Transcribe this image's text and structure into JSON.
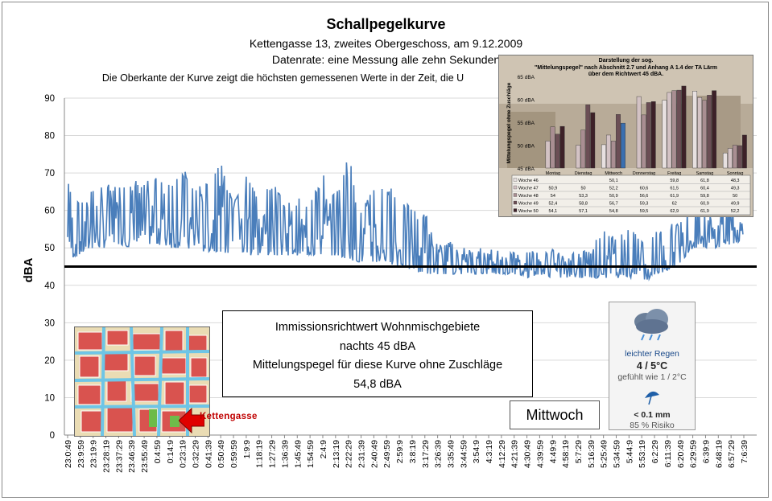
{
  "title": "Schallpegelkurve",
  "subtitle1": "Kettengasse 13, zweites Obergeschoss, am 9.12.2009",
  "subtitle2": "Datenrate: eine Messung alle zehn Sekunden",
  "note": "Die Oberkante der Kurve zeigt die höchsten gemessenen Werte  in der Zeit, die U",
  "info": {
    "line1": "Immissionsrichtwert Wohnmischgebiete",
    "line2": "nachts 45 dBA",
    "line3": "Mittelungspegel für diese Kurve ohne Zuschläge",
    "line4": "54,8 dBA"
  },
  "day": "Mittwoch",
  "weather": {
    "condition": "leichter Regen",
    "temp": "4 / 5°C",
    "feels": "gefühlt wie 1 / 2°C",
    "rain": "< 0.1 mm",
    "risk": "85 % Risiko",
    "icon": "rain-cloud-icon",
    "umbrella": "umbrella-icon"
  },
  "map": {
    "label": "Kettengasse",
    "arrow_color": "#e00000"
  },
  "colors": {
    "series": "#4a7ebb",
    "threshold": "#000000",
    "grid": "#d9d9d9"
  },
  "chart_data": {
    "type": "line",
    "ylabel": "dBA",
    "ylim": [
      0,
      90
    ],
    "yticks": [
      0,
      10,
      20,
      30,
      40,
      50,
      60,
      70,
      80,
      90
    ],
    "grid": true,
    "threshold": 45,
    "xticks": [
      "23:0:49",
      "23:9:59",
      "23:19:9",
      "23:28:19",
      "23:37:29",
      "23:46:39",
      "23:55:49",
      "0:4:59",
      "0:14:9",
      "0:23:19",
      "0:32:29",
      "0:41:39",
      "0:50:49",
      "0:59:59",
      "1:9:9",
      "1:18:19",
      "1:27:29",
      "1:36:39",
      "1:45:49",
      "1:54:59",
      "2:4:9",
      "2:13:19",
      "2:22:29",
      "2:31:39",
      "2:40:49",
      "2:49:59",
      "2:59:9",
      "3:8:19",
      "3:17:29",
      "3:26:39",
      "3:35:49",
      "3:44:59",
      "3:54:9",
      "4:3:19",
      "4:12:29",
      "4:21:39",
      "4:30:49",
      "4:39:59",
      "4:49:9",
      "4:58:19",
      "5:7:29",
      "5:16:39",
      "5:25:49",
      "5:34:59",
      "5:44:9",
      "5:53:19",
      "6:2:29",
      "6:11:39",
      "6:20:49",
      "6:29:59",
      "6:39:9",
      "6:48:19",
      "6:57:29",
      "7:6:39"
    ],
    "series": [
      {
        "envelope": [
          {
            "x": "23:0:49",
            "min": 47,
            "max": 68
          },
          {
            "x": "23:9:59",
            "min": 48,
            "max": 62
          },
          {
            "x": "23:19:9",
            "min": 50,
            "max": 66
          },
          {
            "x": "23:28:19",
            "min": 50,
            "max": 68
          },
          {
            "x": "23:37:29",
            "min": 51,
            "max": 66
          },
          {
            "x": "23:46:39",
            "min": 50,
            "max": 68
          },
          {
            "x": "23:55:49",
            "min": 51,
            "max": 68
          },
          {
            "x": "0:4:59",
            "min": 51,
            "max": 69
          },
          {
            "x": "0:14:9",
            "min": 50,
            "max": 67
          },
          {
            "x": "0:23:19",
            "min": 50,
            "max": 72
          },
          {
            "x": "0:32:29",
            "min": 49,
            "max": 66
          },
          {
            "x": "0:41:39",
            "min": 49,
            "max": 68
          },
          {
            "x": "0:50:49",
            "min": 49,
            "max": 73
          },
          {
            "x": "0:59:59",
            "min": 48,
            "max": 62
          },
          {
            "x": "1:9:9",
            "min": 48,
            "max": 70
          },
          {
            "x": "1:18:19",
            "min": 48,
            "max": 64
          },
          {
            "x": "1:27:29",
            "min": 48,
            "max": 68
          },
          {
            "x": "1:36:39",
            "min": 48,
            "max": 62
          },
          {
            "x": "1:45:49",
            "min": 48,
            "max": 64
          },
          {
            "x": "1:54:59",
            "min": 48,
            "max": 62
          },
          {
            "x": "2:4:9",
            "min": 48,
            "max": 70
          },
          {
            "x": "2:13:19",
            "min": 48,
            "max": 64
          },
          {
            "x": "2:22:29",
            "min": 47,
            "max": 75
          },
          {
            "x": "2:31:39",
            "min": 46,
            "max": 62
          },
          {
            "x": "2:40:49",
            "min": 46,
            "max": 66
          },
          {
            "x": "2:49:59",
            "min": 46,
            "max": 68
          },
          {
            "x": "2:59:9",
            "min": 45,
            "max": 62
          },
          {
            "x": "3:8:19",
            "min": 44,
            "max": 62
          },
          {
            "x": "3:17:29",
            "min": 43,
            "max": 60
          },
          {
            "x": "3:26:39",
            "min": 43,
            "max": 52
          },
          {
            "x": "3:35:49",
            "min": 43,
            "max": 52
          },
          {
            "x": "3:44:59",
            "min": 43,
            "max": 50
          },
          {
            "x": "3:54:9",
            "min": 43,
            "max": 50
          },
          {
            "x": "4:3:19",
            "min": 43,
            "max": 50
          },
          {
            "x": "4:12:29",
            "min": 43,
            "max": 50
          },
          {
            "x": "4:21:39",
            "min": 43,
            "max": 49
          },
          {
            "x": "4:30:49",
            "min": 42,
            "max": 49
          },
          {
            "x": "4:39:59",
            "min": 43,
            "max": 50
          },
          {
            "x": "4:49:9",
            "min": 42,
            "max": 50
          },
          {
            "x": "4:58:19",
            "min": 42,
            "max": 48
          },
          {
            "x": "5:7:29",
            "min": 42,
            "max": 49
          },
          {
            "x": "5:16:39",
            "min": 42,
            "max": 50
          },
          {
            "x": "5:25:49",
            "min": 42,
            "max": 56
          },
          {
            "x": "5:34:59",
            "min": 42,
            "max": 52
          },
          {
            "x": "5:44:9",
            "min": 42,
            "max": 56
          },
          {
            "x": "5:53:19",
            "min": 41,
            "max": 52
          },
          {
            "x": "6:2:29",
            "min": 42,
            "max": 55
          },
          {
            "x": "6:11:39",
            "min": 44,
            "max": 56
          },
          {
            "x": "6:20:49",
            "min": 46,
            "max": 58
          },
          {
            "x": "6:29:59",
            "min": 50,
            "max": 62
          },
          {
            "x": "6:39:9",
            "min": 50,
            "max": 60
          },
          {
            "x": "6:48:19",
            "min": 50,
            "max": 60
          },
          {
            "x": "6:57:29",
            "min": 51,
            "max": 62
          },
          {
            "x": "7:6:39",
            "min": 52,
            "max": 60
          }
        ]
      }
    ]
  },
  "inset": {
    "title_line1": "Darstellung der sog.",
    "title_line2": "\"Mittelungspegel\" nach Abschnitt 2.7 und Anhang A 1.4 der TA Lärm",
    "title_line3": "über dem Richtwert 45 dBA.",
    "ylabel": "Mittelungspegel ohne Zuschläge",
    "yticks": [
      "45 dBA",
      "50 dBA",
      "55 dBA",
      "60 dBA",
      "65 dBA"
    ],
    "ylim": [
      45,
      65
    ],
    "days": [
      "Montag",
      "Dienstag",
      "Mittwoch",
      "Donnerstag",
      "Freitag",
      "Samstag",
      "Sonntag"
    ],
    "weeks": [
      {
        "name": "Woche 46",
        "color": "#e7e0e0",
        "values": [
          null,
          null,
          50.1,
          null,
          59.8,
          61.8,
          48.3
        ]
      },
      {
        "name": "Woche 47",
        "color": "#d3c2c4",
        "values": [
          50.9,
          50,
          52.2,
          60.6,
          61.5,
          60.4,
          49.3
        ]
      },
      {
        "name": "Woche 48",
        "color": "#a98e92",
        "values": [
          54,
          53.3,
          50.9,
          56.6,
          61.9,
          59.8,
          50
        ]
      },
      {
        "name": "Woche 49",
        "color": "#6b4e55",
        "values": [
          52.4,
          58.8,
          56.7,
          59.3,
          62,
          60.9,
          49.9
        ]
      },
      {
        "name": "Woche 50",
        "color": "#3d2128",
        "values": [
          54.1,
          57.1,
          54.8,
          59.5,
          62.9,
          61.9,
          52.2
        ]
      }
    ],
    "highlight": {
      "week": "Woche 50",
      "day": "Mittwoch",
      "color": "#3a6fb0"
    }
  }
}
